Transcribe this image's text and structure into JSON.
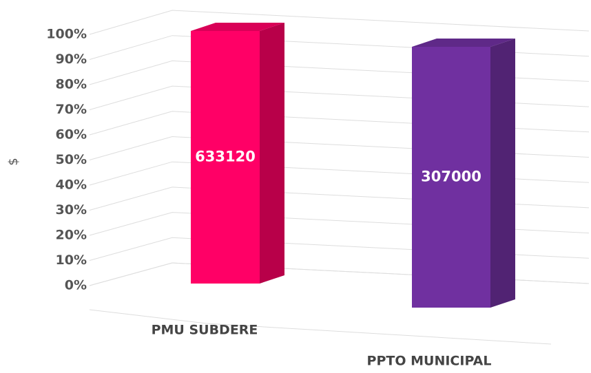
{
  "chart_data": {
    "type": "bar3d",
    "stacking": "percent",
    "ylabel": "$",
    "categories": [
      "PMU SUBDERE",
      "PPTO MUNICIPAL"
    ],
    "values": [
      633120,
      307000
    ],
    "colors": [
      "#ff0066",
      "#7030a0"
    ],
    "ylim": [
      0,
      100
    ],
    "yticks": [
      {
        "value": 0,
        "label": "0%"
      },
      {
        "value": 10,
        "label": "10%"
      },
      {
        "value": 20,
        "label": "20%"
      },
      {
        "value": 30,
        "label": "30%"
      },
      {
        "value": 40,
        "label": "40%"
      },
      {
        "value": 50,
        "label": "50%"
      },
      {
        "value": 60,
        "label": "60%"
      },
      {
        "value": 70,
        "label": "70%"
      },
      {
        "value": 80,
        "label": "80%"
      },
      {
        "value": 90,
        "label": "90%"
      },
      {
        "value": 100,
        "label": "100%"
      }
    ],
    "grid": true
  }
}
